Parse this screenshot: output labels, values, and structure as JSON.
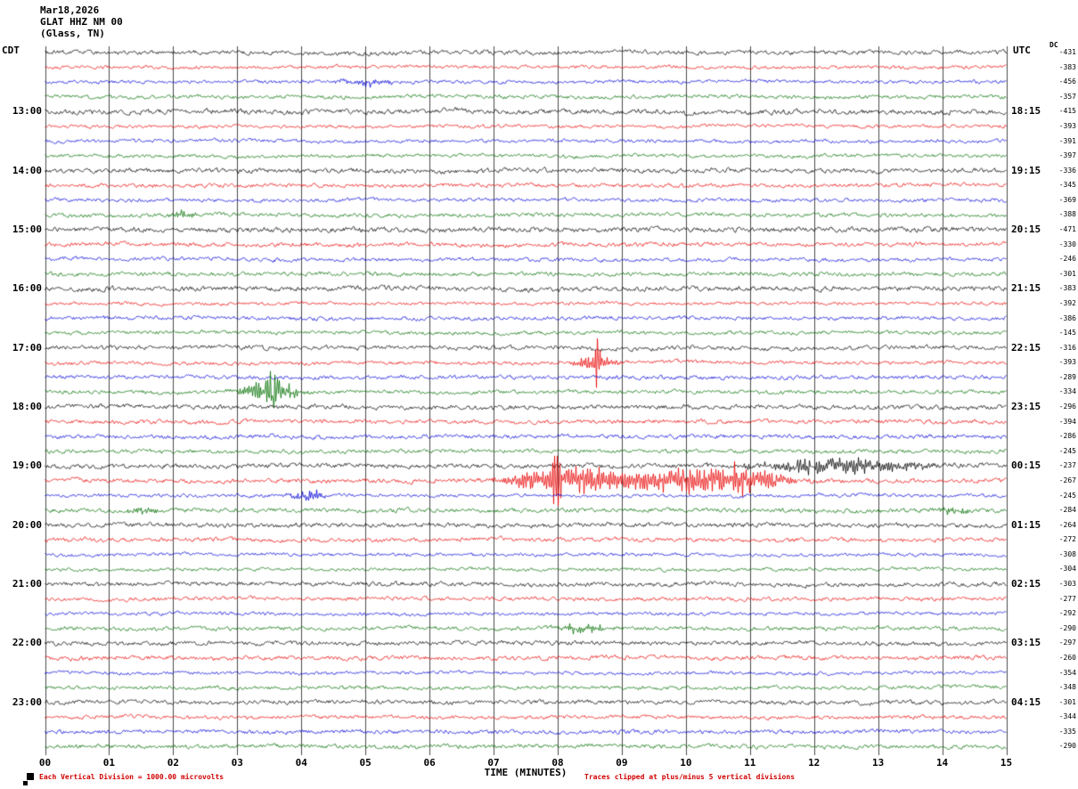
{
  "header": {
    "date": "Mar18,2026",
    "station": "GLAT HHZ NM 00",
    "location": "(Glass, TN)",
    "left_tz": "CDT",
    "right_tz": "UTC",
    "dc_header": "DC"
  },
  "footer": {
    "scale_note": "Each Vertical Division = 1000.00 microvolts",
    "clip_note": "Traces clipped at plus/minus 5 vertical divisions"
  },
  "chart_data": {
    "type": "line",
    "subtype": "helicorder-seismogram",
    "title": "GLAT HHZ NM 00 (Glass, TN) Mar18,2026",
    "xlabel": "TIME (MINUTES)",
    "x_axis": {
      "min": 0,
      "max": 15,
      "tick_labels": [
        "00",
        "01",
        "02",
        "03",
        "04",
        "05",
        "06",
        "07",
        "08",
        "09",
        "10",
        "11",
        "12",
        "13",
        "14",
        "15"
      ]
    },
    "row_count": 48,
    "minutes_per_row": 15,
    "trace_color_cycle": [
      "#000000",
      "#e80000",
      "#0000d8",
      "#006e00"
    ],
    "grid_color": "#4a4a4a",
    "left_time_labels": [
      {
        "row": 4,
        "label": "13:00"
      },
      {
        "row": 8,
        "label": "14:00"
      },
      {
        "row": 12,
        "label": "15:00"
      },
      {
        "row": 16,
        "label": "16:00"
      },
      {
        "row": 20,
        "label": "17:00"
      },
      {
        "row": 24,
        "label": "18:00"
      },
      {
        "row": 28,
        "label": "19:00"
      },
      {
        "row": 32,
        "label": "20:00"
      },
      {
        "row": 36,
        "label": "21:00"
      },
      {
        "row": 40,
        "label": "22:00"
      },
      {
        "row": 44,
        "label": "23:00"
      }
    ],
    "right_time_labels": [
      {
        "row": 4,
        "label": "18:15"
      },
      {
        "row": 8,
        "label": "19:15"
      },
      {
        "row": 12,
        "label": "20:15"
      },
      {
        "row": 16,
        "label": "21:15"
      },
      {
        "row": 20,
        "label": "22:15"
      },
      {
        "row": 24,
        "label": "23:15"
      },
      {
        "row": 28,
        "label": "00:15"
      },
      {
        "row": 32,
        "label": "01:15"
      },
      {
        "row": 36,
        "label": "02:15"
      },
      {
        "row": 40,
        "label": "03:15"
      },
      {
        "row": 44,
        "label": "04:15"
      }
    ],
    "dc_offsets": [
      -431,
      -383,
      -456,
      -357,
      -415,
      -393,
      -391,
      -397,
      -336,
      -345,
      -369,
      -388,
      -471,
      -330,
      -246,
      -301,
      -383,
      -392,
      -386,
      -145,
      -316,
      -393,
      -289,
      -334,
      -296,
      -394,
      -286,
      -245,
      -237,
      -267,
      -245,
      -284,
      -264,
      -272,
      -308,
      -304,
      -303,
      -277,
      -292,
      -290,
      -297,
      -260,
      -354,
      -348,
      -301,
      -344,
      -335,
      -290
    ],
    "clip_divisions": 5,
    "events": [
      {
        "row": 2,
        "center_min": 5.0,
        "sigma_min": 0.3,
        "amplitude": 3
      },
      {
        "row": 11,
        "center_min": 2.15,
        "sigma_min": 0.15,
        "amplitude": 4
      },
      {
        "row": 21,
        "center_min": 8.6,
        "sigma_min": 0.22,
        "amplitude": 7
      },
      {
        "row": 21,
        "center_min": 8.62,
        "sigma_min": 0.03,
        "amplitude": 26
      },
      {
        "row": 23,
        "center_min": 3.5,
        "sigma_min": 0.28,
        "amplitude": 11
      },
      {
        "row": 23,
        "center_min": 3.55,
        "sigma_min": 0.04,
        "amplitude": 19
      },
      {
        "row": 28,
        "center_min": 12.4,
        "sigma_min": 0.85,
        "amplitude": 7
      },
      {
        "row": 29,
        "center_min": 8.05,
        "sigma_min": 0.55,
        "amplitude": 13
      },
      {
        "row": 29,
        "center_min": 7.97,
        "sigma_min": 0.04,
        "amplitude": 30
      },
      {
        "row": 29,
        "center_min": 9.95,
        "sigma_min": 0.85,
        "amplitude": 11
      },
      {
        "row": 29,
        "center_min": 11.0,
        "sigma_min": 0.35,
        "amplitude": 9
      },
      {
        "row": 30,
        "center_min": 4.1,
        "sigma_min": 0.2,
        "amplitude": 5
      },
      {
        "row": 31,
        "center_min": 1.55,
        "sigma_min": 0.15,
        "amplitude": 4
      },
      {
        "row": 31,
        "center_min": 14.15,
        "sigma_min": 0.15,
        "amplitude": 3.5
      },
      {
        "row": 39,
        "center_min": 8.45,
        "sigma_min": 0.3,
        "amplitude": 4.5
      }
    ]
  }
}
